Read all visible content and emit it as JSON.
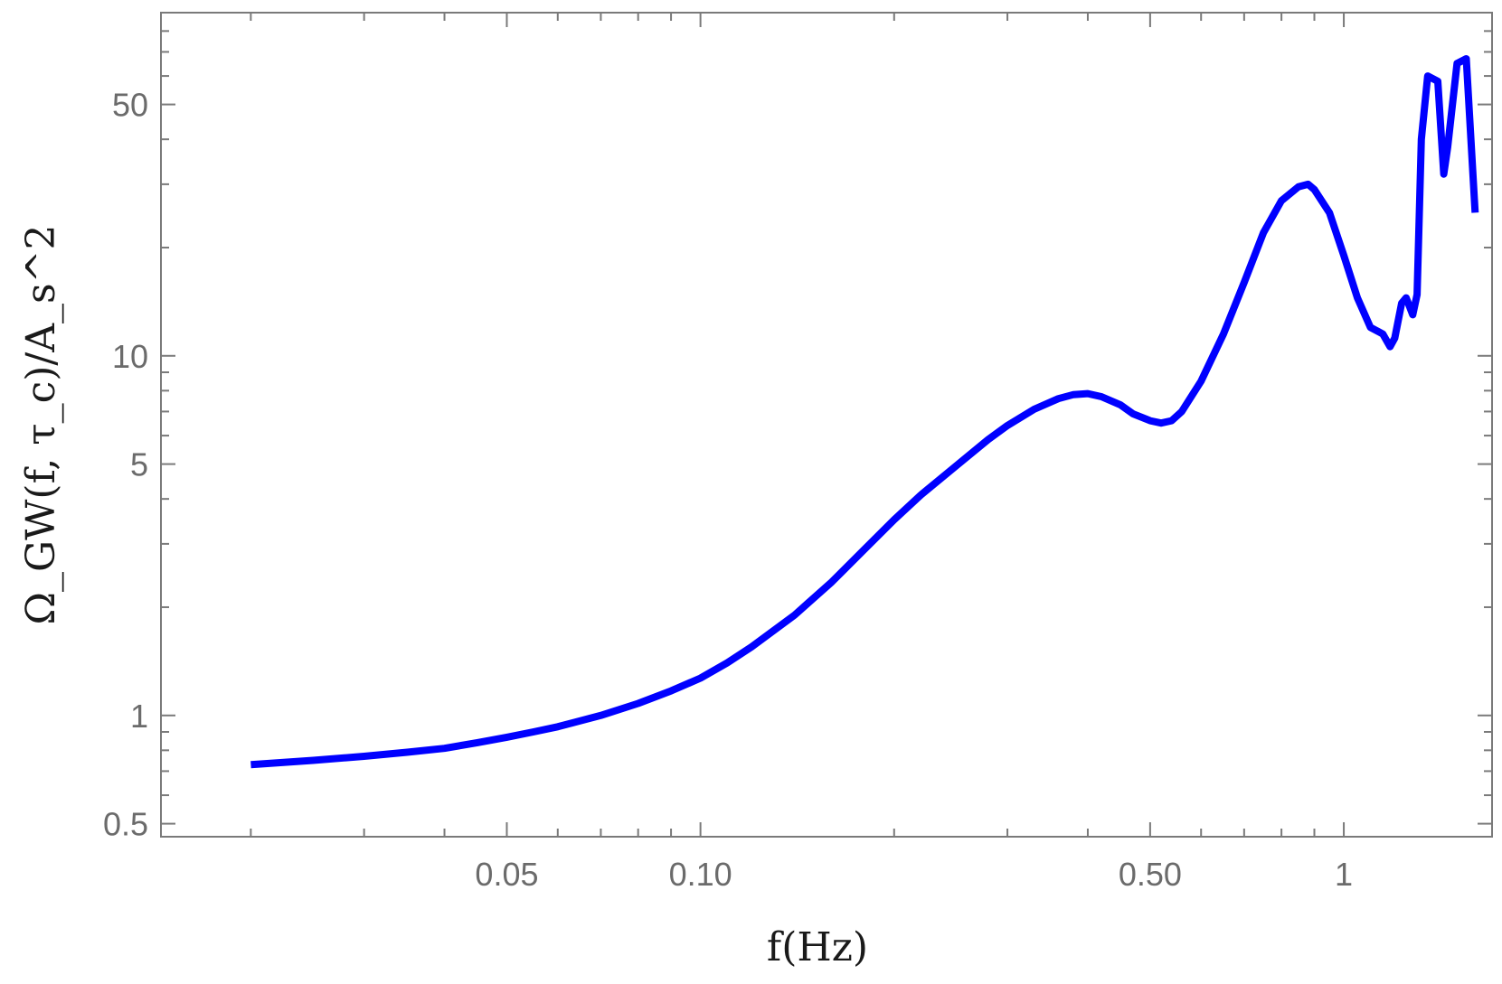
{
  "chart_data": {
    "type": "line",
    "title": "",
    "xlabel": "f(Hz)",
    "ylabel": "Ω_GW(f, τ_c)/A_s^2",
    "xscale": "log",
    "yscale": "log",
    "xlim": [
      0.0145,
      1.7
    ],
    "ylim": [
      0.46,
      90
    ],
    "grid": false,
    "line_color": "#0000ff",
    "x_ticks": [
      {
        "value": 0.05,
        "label": "0.05"
      },
      {
        "value": 0.1,
        "label": "0.10"
      },
      {
        "value": 0.5,
        "label": "0.50"
      },
      {
        "value": 1,
        "label": "1"
      }
    ],
    "y_ticks": [
      {
        "value": 0.5,
        "label": "0.5"
      },
      {
        "value": 1,
        "label": "1"
      },
      {
        "value": 5,
        "label": "5"
      },
      {
        "value": 10,
        "label": "10"
      },
      {
        "value": 50,
        "label": "50"
      }
    ],
    "series": [
      {
        "x": [
          0.02,
          0.025,
          0.03,
          0.035,
          0.04,
          0.045,
          0.05,
          0.055,
          0.06,
          0.07,
          0.08,
          0.09,
          0.1,
          0.11,
          0.12,
          0.14,
          0.16,
          0.18,
          0.2,
          0.22,
          0.25,
          0.28,
          0.3,
          0.33,
          0.36,
          0.38,
          0.4,
          0.42,
          0.45,
          0.47,
          0.5,
          0.52,
          0.54,
          0.56,
          0.6,
          0.65,
          0.7,
          0.75,
          0.8,
          0.85,
          0.88,
          0.9,
          0.95,
          1.0,
          1.05,
          1.1,
          1.15,
          1.18,
          1.2,
          1.23,
          1.25,
          1.28,
          1.3,
          1.32,
          1.35,
          1.4,
          1.43,
          1.45,
          1.5,
          1.55,
          1.6
        ],
        "y": [
          0.73,
          0.75,
          0.77,
          0.79,
          0.81,
          0.84,
          0.87,
          0.9,
          0.93,
          1.0,
          1.08,
          1.17,
          1.27,
          1.4,
          1.55,
          1.9,
          2.35,
          2.9,
          3.5,
          4.1,
          4.95,
          5.85,
          6.4,
          7.1,
          7.6,
          7.8,
          7.85,
          7.7,
          7.3,
          6.9,
          6.6,
          6.5,
          6.6,
          7.0,
          8.5,
          11.5,
          16.0,
          22.0,
          27.0,
          29.5,
          30.0,
          29.0,
          25.0,
          19.0,
          14.5,
          12.0,
          11.5,
          10.6,
          11.2,
          14.0,
          14.5,
          13.0,
          14.8,
          40.0,
          60.0,
          58.0,
          32.0,
          38.0,
          65.0,
          67.0,
          25.0
        ]
      }
    ]
  }
}
